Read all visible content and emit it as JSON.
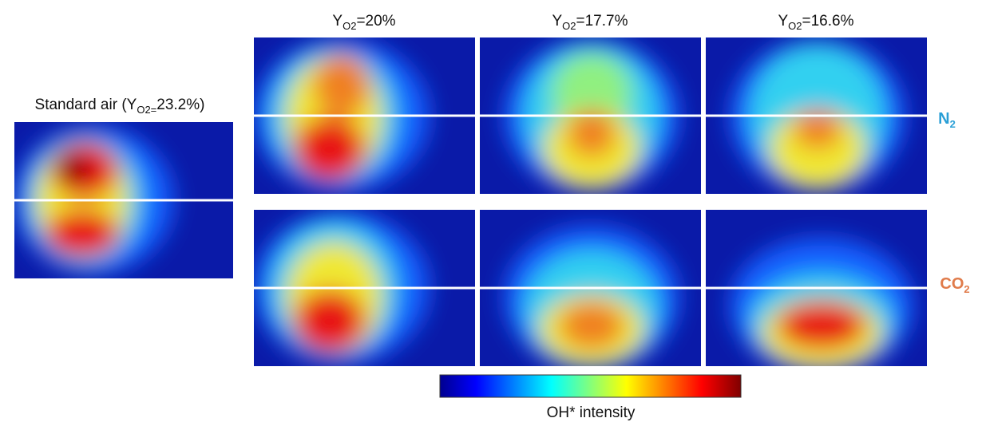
{
  "reference": {
    "pre": "Standard air (Y",
    "sub": "O2=",
    "rest": "23.2%)"
  },
  "columns": [
    {
      "base": "Y",
      "sub": "O2",
      "rest": "=20%"
    },
    {
      "base": "Y",
      "sub": "O2",
      "rest": "=17.7%"
    },
    {
      "base": "Y",
      "sub": "O2",
      "rest": "=16.6%"
    }
  ],
  "rows": [
    {
      "base": "N",
      "sub": "2"
    },
    {
      "base": "CO",
      "sub": "2"
    }
  ],
  "colorbar": {
    "label": "OH* intensity"
  }
}
